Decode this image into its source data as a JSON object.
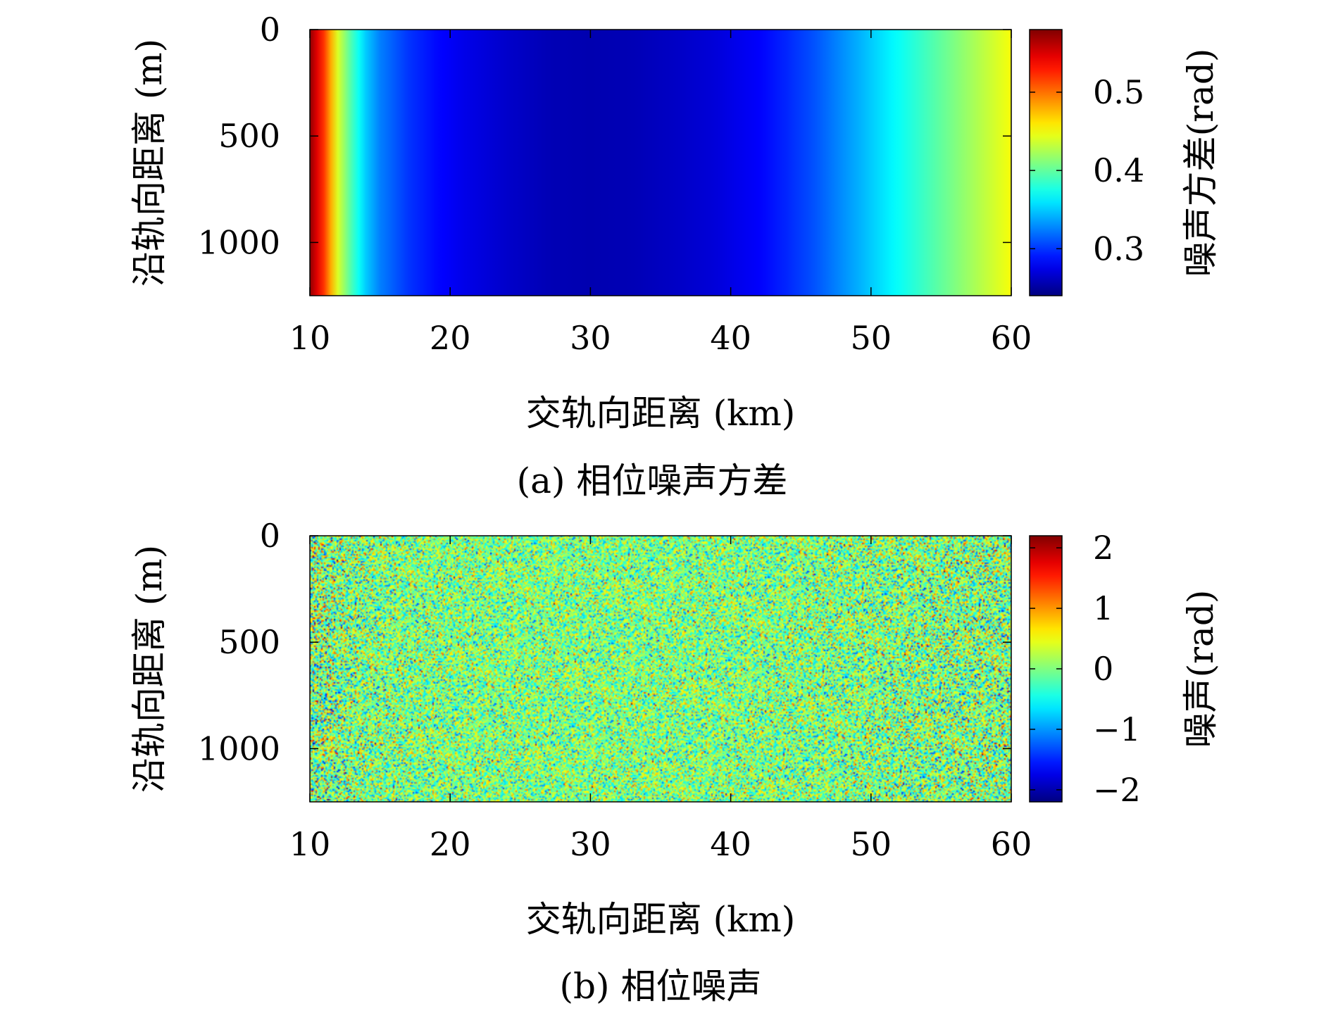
{
  "chart_data": [
    {
      "type": "heatmap",
      "caption": "(a) 相位噪声方差",
      "xlabel": "交轨向距离 (km)",
      "ylabel": "沿轨向距离 (m)",
      "xlim": [
        10,
        60
      ],
      "ylim": [
        0,
        1250
      ],
      "y_reversed": true,
      "xticks": [
        10,
        20,
        30,
        40,
        50,
        60
      ],
      "yticks": [
        0,
        500,
        1000
      ],
      "colormap": "jet",
      "colorbar": {
        "label": "噪声方差(rad)",
        "range": [
          0.24,
          0.58
        ],
        "ticks": [
          0.3,
          0.4,
          0.5
        ],
        "tick_labels": [
          "0.3",
          "0.4",
          "0.5"
        ]
      },
      "profile": {
        "description_x_km": [
          10,
          11,
          12,
          13,
          14,
          15,
          17,
          19,
          21,
          24,
          27,
          30,
          33,
          36,
          39,
          42,
          44,
          46,
          48,
          50,
          52,
          54,
          56,
          58,
          60
        ],
        "value_rad": [
          0.575,
          0.52,
          0.44,
          0.39,
          0.35,
          0.325,
          0.3,
          0.285,
          0.275,
          0.265,
          0.258,
          0.256,
          0.258,
          0.263,
          0.27,
          0.282,
          0.295,
          0.31,
          0.33,
          0.35,
          0.37,
          0.39,
          0.41,
          0.43,
          0.45
        ]
      }
    },
    {
      "type": "heatmap",
      "caption": "(b) 相位噪声",
      "xlabel": "交轨向距离 (km)",
      "ylabel": "沿轨向距离 (m)",
      "xlim": [
        10,
        60
      ],
      "ylim": [
        0,
        1250
      ],
      "y_reversed": true,
      "xticks": [
        10,
        20,
        30,
        40,
        50,
        60
      ],
      "yticks": [
        0,
        500,
        1000
      ],
      "colormap": "jet",
      "colorbar": {
        "label": "噪声(rad)",
        "range": [
          -2.2,
          2.2
        ],
        "ticks": [
          -2,
          -1,
          0,
          1,
          2
        ],
        "tick_labels": [
          "−2",
          "−1",
          "0",
          "1",
          "2"
        ]
      },
      "noise": "zero-mean random noise with standard deviation following the variance profile of panel (a)"
    }
  ]
}
